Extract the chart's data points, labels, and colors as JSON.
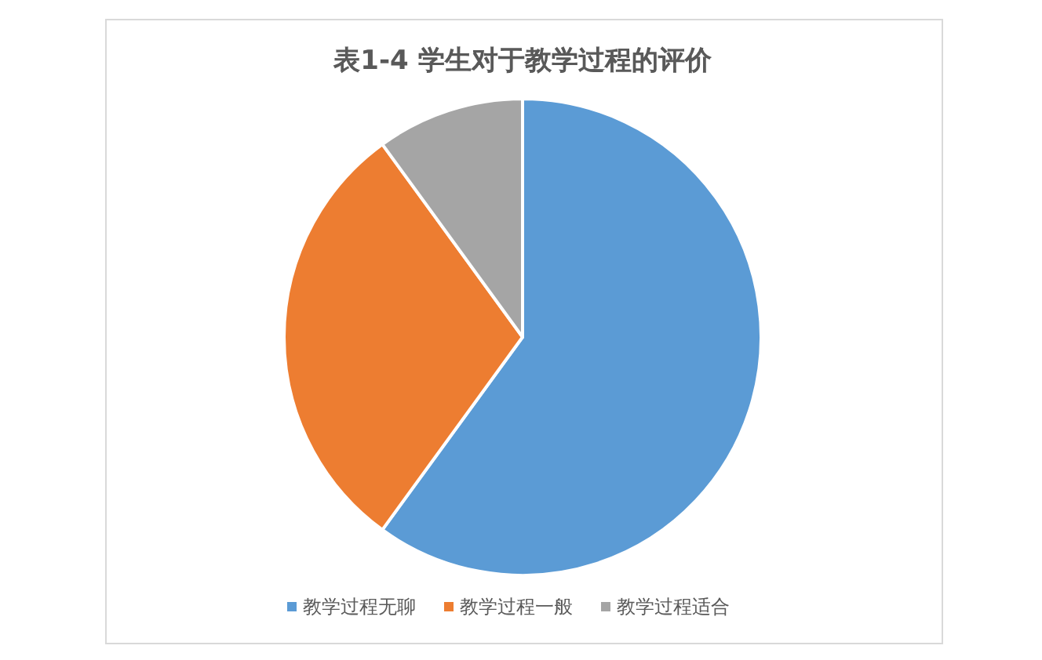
{
  "chart_data": {
    "type": "pie",
    "title": "表1-4 学生对于教学过程的评价",
    "categories": [
      "教学过程无聊",
      "教学过程一般",
      "教学过程适合"
    ],
    "values": [
      60,
      30,
      10
    ],
    "colors": [
      "#5b9bd5",
      "#ed7d31",
      "#a5a5a5"
    ],
    "legend": "bottom"
  }
}
